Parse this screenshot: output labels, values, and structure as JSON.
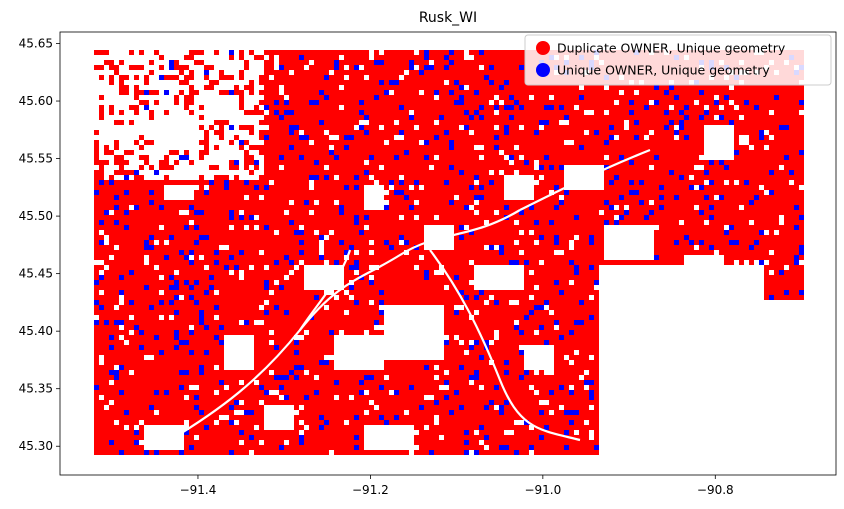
{
  "chart_data": {
    "type": "map",
    "title": "Rusk_WI",
    "xlabel": "",
    "ylabel": "",
    "xlim": [
      -91.56,
      -90.66
    ],
    "ylim": [
      45.275,
      45.66
    ],
    "x_ticks": [
      {
        "value": -91.4,
        "label": "−91.4"
      },
      {
        "value": -91.2,
        "label": "−91.2"
      },
      {
        "value": -91.0,
        "label": "−91.0"
      },
      {
        "value": -90.8,
        "label": "−90.8"
      }
    ],
    "y_ticks": [
      {
        "value": 45.3,
        "label": "45.30"
      },
      {
        "value": 45.35,
        "label": "45.35"
      },
      {
        "value": 45.4,
        "label": "45.40"
      },
      {
        "value": 45.45,
        "label": "45.45"
      },
      {
        "value": 45.5,
        "label": "45.50"
      },
      {
        "value": 45.55,
        "label": "45.55"
      },
      {
        "value": 45.6,
        "label": "45.60"
      },
      {
        "value": 45.65,
        "label": "45.65"
      }
    ],
    "legend_position": "top-right",
    "categories": [
      {
        "name": "Duplicate OWNER, Unique geometry",
        "color": "#ff0000"
      },
      {
        "name": "Unique OWNER, Unique geometry",
        "color": "#0000ff"
      }
    ]
  }
}
